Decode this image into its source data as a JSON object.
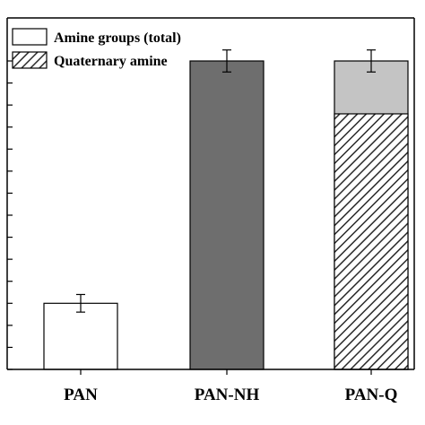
{
  "chart_data": {
    "type": "bar",
    "categories": [
      "PAN",
      "PAN-NH",
      "PAN-Q"
    ],
    "series": [
      {
        "name": "Amine groups (total)",
        "values": [
          15,
          70,
          70
        ],
        "errors": [
          2,
          2.5,
          2.5
        ],
        "colors": [
          "#ffffff",
          "#6e6e6e",
          "#c4c4c4"
        ]
      },
      {
        "name": "Quaternary amine",
        "values": [
          0,
          0,
          58
        ],
        "pattern": "diagonal-hatch"
      }
    ],
    "ylim": [
      0,
      70
    ],
    "y_tick_step": 5,
    "title": "",
    "xlabel": "",
    "ylabel": "",
    "legend_position": "top-left",
    "grid": false
  }
}
